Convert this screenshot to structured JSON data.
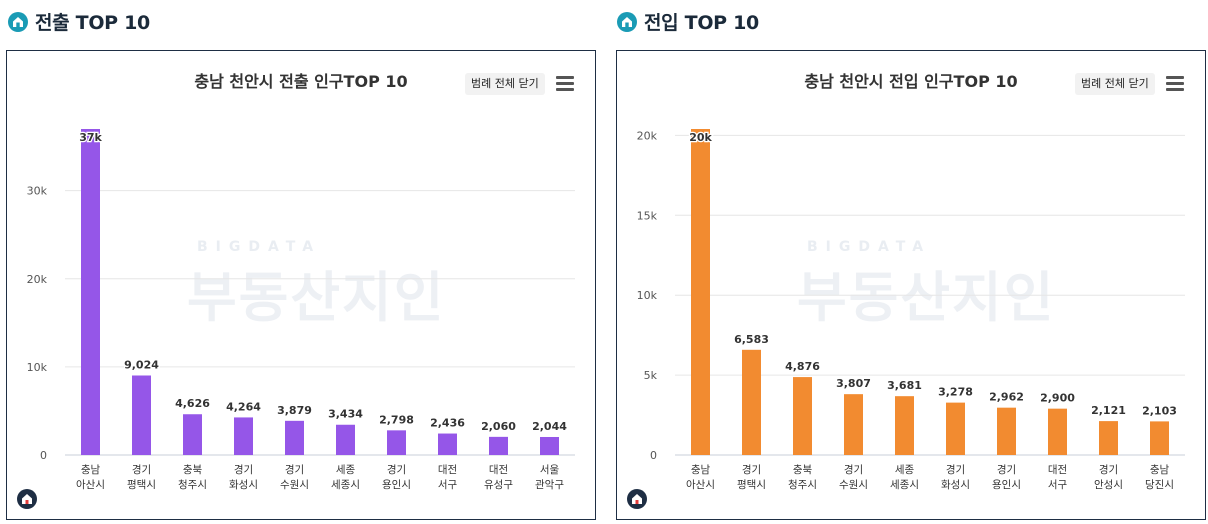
{
  "sections": [
    {
      "heading": "전출 TOP 10",
      "legend_label": "범례 전체 닫기",
      "watermark": {
        "top": "BIGDATA",
        "main": "부동산지인"
      },
      "color": "#9556e8",
      "chart_data": {
        "type": "bar",
        "title": "충남 천안시 전출 인구TOP 10",
        "categories": [
          [
            "충남",
            "아산시"
          ],
          [
            "경기",
            "평택시"
          ],
          [
            "충북",
            "청주시"
          ],
          [
            "경기",
            "화성시"
          ],
          [
            "경기",
            "수원시"
          ],
          [
            "세종",
            "세종시"
          ],
          [
            "경기",
            "용인시"
          ],
          [
            "대전",
            "서구"
          ],
          [
            "대전",
            "유성구"
          ],
          [
            "서울",
            "관악구"
          ]
        ],
        "values": [
          37000,
          9024,
          4626,
          4264,
          3879,
          3434,
          2798,
          2436,
          2060,
          2044
        ],
        "data_labels": [
          "37k",
          "9,024",
          "4,626",
          "4,264",
          "3,879",
          "3,434",
          "2,798",
          "2,436",
          "2,060",
          "2,044"
        ],
        "yticks": [
          0,
          10000,
          20000,
          30000
        ],
        "ytick_labels": [
          "0",
          "10k",
          "20k",
          "30k"
        ],
        "ylim": [
          0,
          37000
        ],
        "xlabel": "",
        "ylabel": "",
        "legend": "none"
      }
    },
    {
      "heading": "전입 TOP 10",
      "legend_label": "범례 전체 닫기",
      "watermark": {
        "top": "BIGDATA",
        "main": "부동산지인"
      },
      "color": "#f28b30",
      "chart_data": {
        "type": "bar",
        "title": "충남 천안시 전입 인구TOP 10",
        "categories": [
          [
            "충남",
            "아산시"
          ],
          [
            "경기",
            "평택시"
          ],
          [
            "충북",
            "청주시"
          ],
          [
            "경기",
            "수원시"
          ],
          [
            "세종",
            "세종시"
          ],
          [
            "경기",
            "화성시"
          ],
          [
            "경기",
            "용인시"
          ],
          [
            "대전",
            "서구"
          ],
          [
            "경기",
            "안성시"
          ],
          [
            "충남",
            "당진시"
          ]
        ],
        "values": [
          20400,
          6583,
          4876,
          3807,
          3681,
          3278,
          2962,
          2900,
          2121,
          2103
        ],
        "data_labels": [
          "20k",
          "6,583",
          "4,876",
          "3,807",
          "3,681",
          "3,278",
          "2,962",
          "2,900",
          "2,121",
          "2,103"
        ],
        "yticks": [
          0,
          5000,
          10000,
          15000,
          20000
        ],
        "ytick_labels": [
          "0",
          "5k",
          "10k",
          "15k",
          "20k"
        ],
        "ylim": [
          0,
          20400
        ],
        "xlabel": "",
        "ylabel": "",
        "legend": "none"
      }
    }
  ]
}
